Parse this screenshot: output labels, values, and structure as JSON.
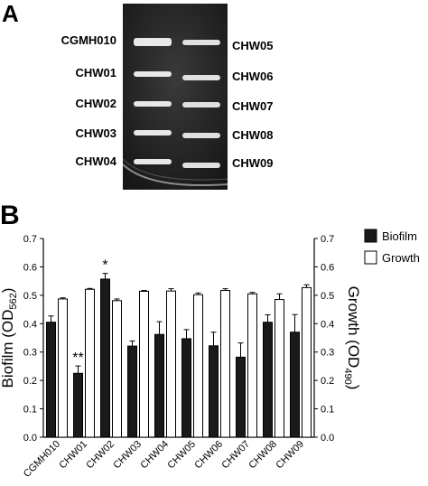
{
  "panel_a": {
    "letter": "A",
    "left_labels": [
      "CGMH010",
      "CHW01",
      "CHW02",
      "CHW03",
      "CHW04"
    ],
    "right_labels": [
      "CHW05",
      "CHW06",
      "CHW07",
      "CHW08",
      "CHW09"
    ]
  },
  "panel_b": {
    "letter": "B"
  },
  "chart_data": {
    "type": "bar",
    "categories": [
      "CGMH010",
      "CHW01",
      "CHW02",
      "CHW03",
      "CHW04",
      "CHW05",
      "CHW06",
      "CHW07",
      "CHW08",
      "CHW09"
    ],
    "series": [
      {
        "name": "Biofilm",
        "color": "#1a1a1a",
        "values": [
          0.405,
          0.225,
          0.557,
          0.321,
          0.362,
          0.347,
          0.322,
          0.282,
          0.405,
          0.37
        ],
        "errors": [
          0.022,
          0.026,
          0.02,
          0.018,
          0.045,
          0.032,
          0.048,
          0.05,
          0.026,
          0.062
        ]
      },
      {
        "name": "Growth",
        "color": "#ffffff",
        "values": [
          0.487,
          0.521,
          0.481,
          0.514,
          0.515,
          0.502,
          0.517,
          0.505,
          0.485,
          0.527
        ],
        "errors": [
          0.004,
          0.003,
          0.006,
          0.003,
          0.008,
          0.006,
          0.006,
          0.005,
          0.02,
          0.01
        ]
      }
    ],
    "annotations": [
      {
        "category": "CHW01",
        "series": "Biofilm",
        "text": "**"
      },
      {
        "category": "CHW02",
        "series": "Biofilm",
        "text": "*"
      }
    ],
    "ylabel_left": "Biofilm (OD",
    "ylabel_left_sub": "562",
    "ylabel_left_close": ")",
    "ylabel_right": "Growth (OD",
    "ylabel_right_sub": "490",
    "ylabel_right_close": ")",
    "ylim": [
      0,
      0.7
    ],
    "yticks": [
      "0.0",
      "0.1",
      "0.2",
      "0.3",
      "0.4",
      "0.5",
      "0.6",
      "0.7"
    ],
    "legend_position": "top-right"
  }
}
